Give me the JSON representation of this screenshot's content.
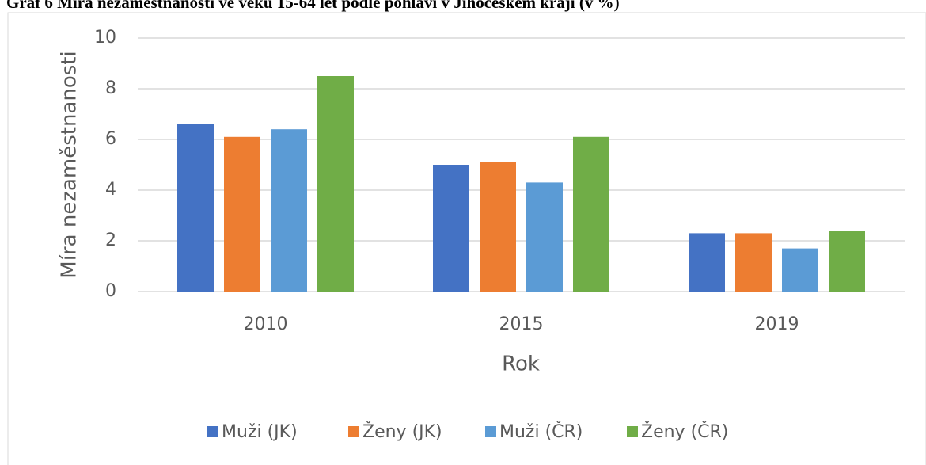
{
  "chart_data": {
    "type": "bar",
    "title": "Graf 6 Míra nezaměstnanosti ve věku 15-64 let podle pohlaví v Jihočeském kraji (v %)",
    "x_label": "Rok",
    "y_label": "Míra nezaměstnanosti",
    "categories": [
      "2010",
      "2015",
      "2019"
    ],
    "series": [
      {
        "name": "Muži (JK)",
        "color": "#4472c4",
        "values": [
          6.6,
          5.0,
          2.3
        ]
      },
      {
        "name": "Ženy (JK)",
        "color": "#ed7d31",
        "values": [
          6.1,
          5.1,
          2.3
        ]
      },
      {
        "name": "Muži (ČR)",
        "color": "#5b9bd5",
        "values": [
          6.4,
          4.3,
          1.7
        ]
      },
      {
        "name": "Ženy (ČR)",
        "color": "#70ad47",
        "values": [
          8.5,
          6.1,
          2.4
        ]
      }
    ],
    "ylim": [
      0,
      10
    ],
    "yticks": [
      0,
      2,
      4,
      6,
      8,
      10
    ],
    "grid": true,
    "legend": "bottom"
  }
}
